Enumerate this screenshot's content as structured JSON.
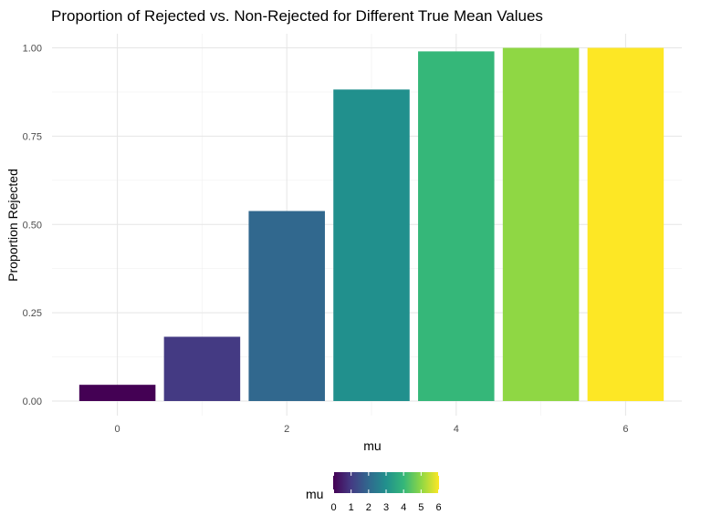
{
  "chart_data": {
    "type": "bar",
    "title": "Proportion of Rejected vs. Non-Rejected for Different True Mean Values",
    "xlabel": "mu",
    "ylabel": "Proportion Rejected",
    "x": [
      0,
      1,
      2,
      3,
      4,
      5,
      6
    ],
    "values": [
      0.046,
      0.182,
      0.538,
      0.882,
      0.99,
      1.0,
      1.0
    ],
    "xlim": [
      -0.6,
      6.6
    ],
    "ylim": [
      0,
      1.0
    ],
    "x_ticks": [
      0,
      2,
      4,
      6
    ],
    "x_tick_labels": [
      "0",
      "2",
      "4",
      "6"
    ],
    "y_ticks": [
      0,
      0.25,
      0.5,
      0.75,
      1.0
    ],
    "y_tick_labels": [
      "0.00",
      "0.25",
      "0.50",
      "0.75",
      "1.00"
    ],
    "grid": true,
    "color_scale": "viridis",
    "colors": [
      "#440154",
      "#443a83",
      "#31688e",
      "#21908d",
      "#35b779",
      "#8fd744",
      "#fde725"
    ],
    "legend": {
      "title": "mu",
      "position": "bottom",
      "ticks": [
        0,
        1,
        2,
        3,
        4,
        5,
        6
      ],
      "tick_labels": [
        "0",
        "1",
        "2",
        "3",
        "4",
        "5",
        "6"
      ]
    }
  }
}
